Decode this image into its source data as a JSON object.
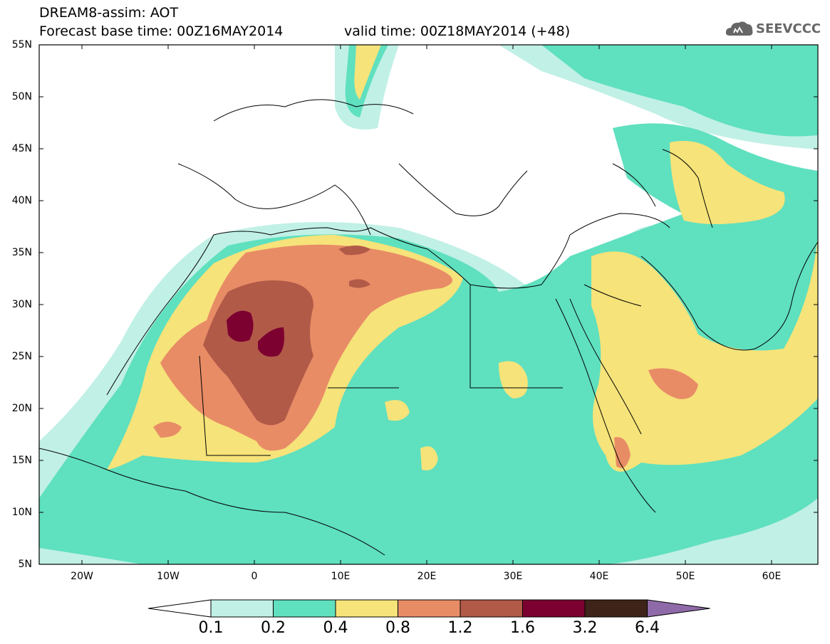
{
  "header": {
    "title": "DREAM8-assim: AOT",
    "base_time": "Forecast base time: 00Z16MAY2014",
    "valid_time": "valid time: 00Z18MAY2014 (+48)",
    "logo_text": "SEEVCCC"
  },
  "map": {
    "lat_labels": [
      "55N",
      "50N",
      "45N",
      "40N",
      "35N",
      "30N",
      "25N",
      "20N",
      "15N",
      "10N",
      "5N"
    ],
    "lon_labels": [
      "20W",
      "10W",
      "0",
      "10E",
      "20E",
      "30E",
      "40E",
      "50E",
      "60E"
    ]
  },
  "colorbar": {
    "labels": [
      "0.1",
      "0.2",
      "0.4",
      "0.8",
      "1.2",
      "1.6",
      "3.2",
      "6.4"
    ],
    "colors": [
      "#c1f0e6",
      "#5fe0bf",
      "#f6e37a",
      "#e88c66",
      "#b25a48",
      "#7c0030",
      "#3e2418",
      "#8f6aa8"
    ]
  }
}
